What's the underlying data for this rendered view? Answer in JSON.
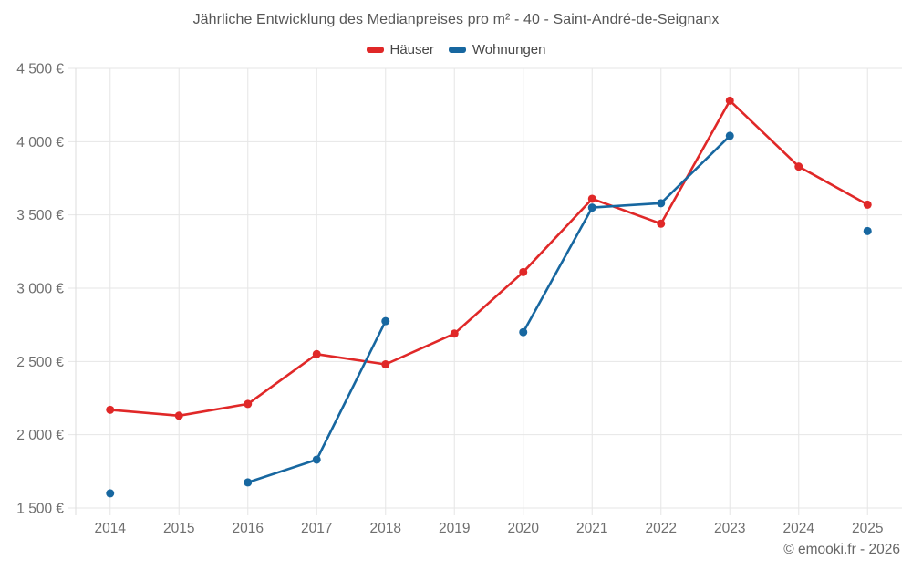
{
  "title": "Jährliche Entwicklung des Medianpreises pro m² - 40 - Saint-André-de-Seignanx",
  "copyright": "© emooki.fr - 2026",
  "legend": [
    {
      "label": "Häuser",
      "color": "#e02828"
    },
    {
      "label": "Wohnungen",
      "color": "#1767a0"
    }
  ],
  "style": {
    "grid_color": "#e6e6e6",
    "axis_color": "#dddddd",
    "tick_label_color": "#6f6f6f",
    "title_color": "#575757",
    "background": "#ffffff"
  },
  "chart_data": {
    "type": "line",
    "x": [
      2014,
      2015,
      2016,
      2017,
      2018,
      2019,
      2020,
      2021,
      2022,
      2023,
      2024,
      2025
    ],
    "xtick_labels": [
      "2014",
      "2015",
      "2016",
      "2017",
      "2018",
      "2019",
      "2020",
      "2021",
      "2022",
      "2023",
      "2024",
      "2025"
    ],
    "series": [
      {
        "name": "Häuser",
        "color": "#e02828",
        "values": [
          2170,
          2130,
          2210,
          2550,
          2480,
          2690,
          3110,
          3610,
          3440,
          4280,
          3830,
          3570
        ]
      },
      {
        "name": "Wohnungen",
        "color": "#1767a0",
        "values": [
          1600,
          null,
          1675,
          1830,
          2775,
          null,
          2700,
          3550,
          3580,
          4040,
          null,
          3390
        ]
      }
    ],
    "title": "Jährliche Entwicklung des Medianpreises pro m² - 40 - Saint-André-de-Seignanx",
    "xlabel": "",
    "ylabel": "",
    "ylim": [
      1500,
      4500
    ],
    "yticks": [
      1500,
      2000,
      2500,
      3000,
      3500,
      4000,
      4500
    ],
    "ytick_labels": [
      "1 500 €",
      "2 000 €",
      "2 500 €",
      "3 000 €",
      "3 500 €",
      "4 000 €",
      "4 500 €"
    ],
    "grid": true,
    "legend_position": "top",
    "marker_radius": 4.5,
    "line_width": 2.6
  }
}
